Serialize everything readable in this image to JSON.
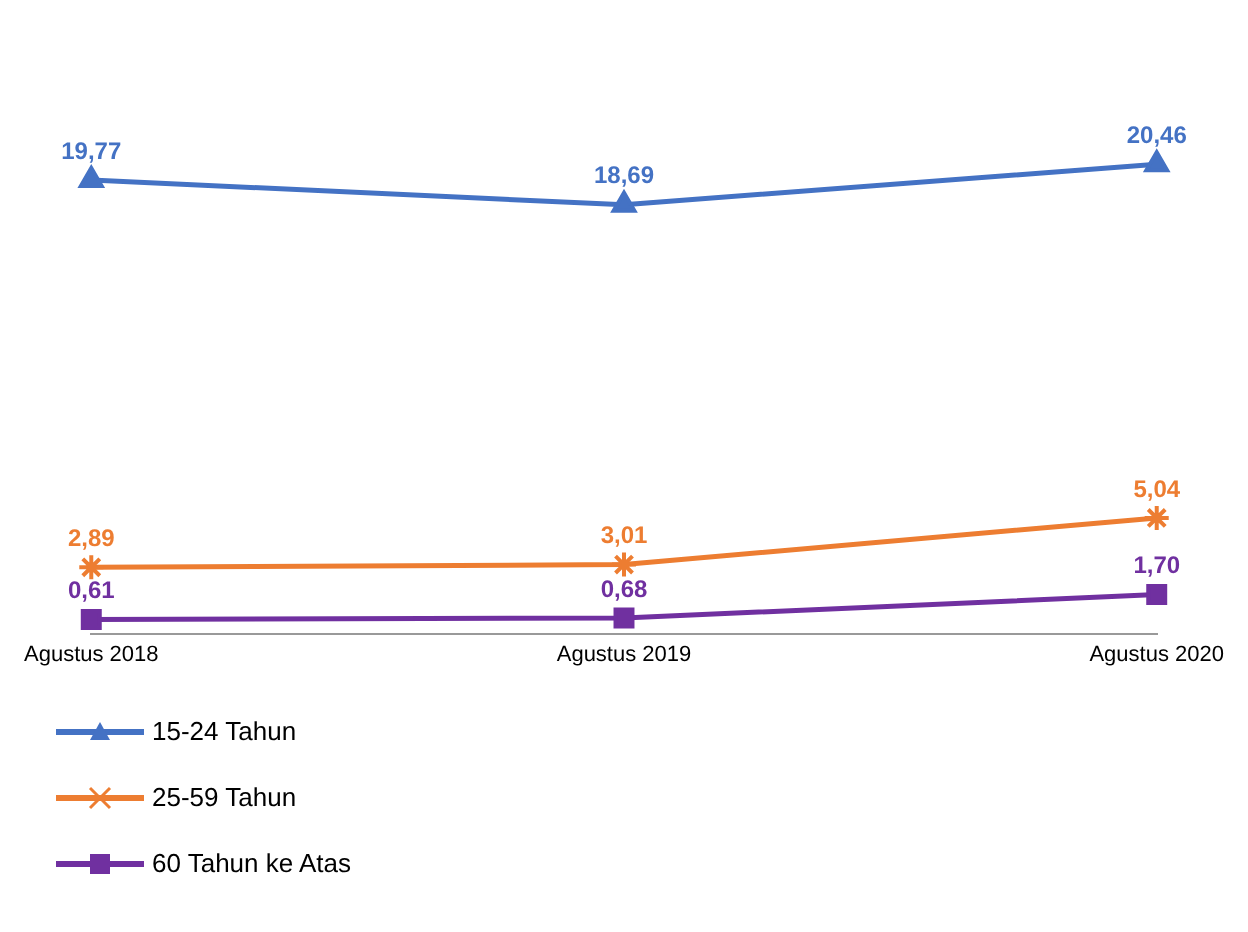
{
  "chart_data": {
    "type": "line",
    "categories": [
      "Agustus 2018",
      "Agustus 2019",
      "Agustus 2020"
    ],
    "series": [
      {
        "name": "15-24 Tahun",
        "color": "#4472c4",
        "marker": "triangle",
        "values": [
          19.77,
          18.69,
          20.46
        ],
        "value_labels": [
          "19,77",
          "18,69",
          "20,46"
        ]
      },
      {
        "name": "25-59 Tahun",
        "color": "#ed7d31",
        "marker": "cross",
        "values": [
          2.89,
          3.01,
          5.04
        ],
        "value_labels": [
          "2,89",
          "3,01",
          "5,04"
        ]
      },
      {
        "name": "60 Tahun ke Atas",
        "color": "#7030a0",
        "marker": "square",
        "values": [
          0.61,
          0.68,
          1.7
        ],
        "value_labels": [
          "0,61",
          "0,68",
          "1,70"
        ]
      }
    ],
    "legend": "bottom left",
    "grid": false,
    "line_style": "solid"
  }
}
